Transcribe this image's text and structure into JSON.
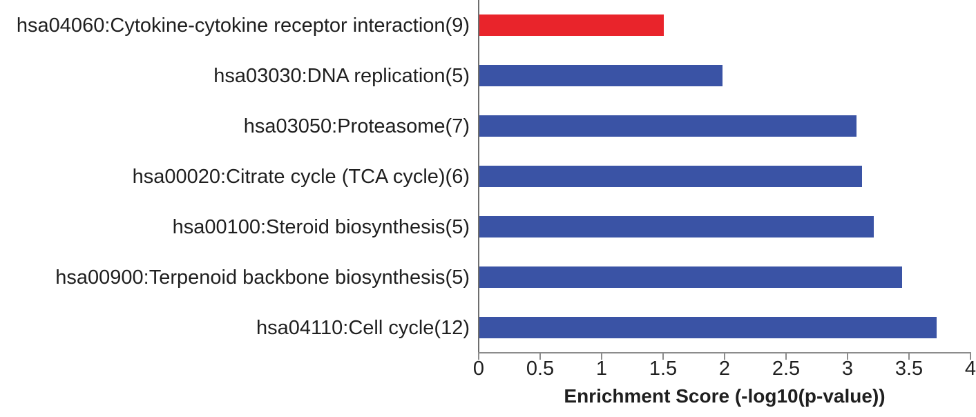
{
  "chart_data": {
    "type": "bar",
    "orientation": "horizontal",
    "title": "",
    "xlabel": "Enrichment Score (-log10(p-value))",
    "ylabel": "",
    "categories": [
      "hsa04060:Cytokine-cytokine receptor interaction(9)",
      "hsa03030:DNA replication(5)",
      "hsa03050:Proteasome(7)",
      "hsa00020:Citrate cycle (TCA cycle)(6)",
      "hsa00100:Steroid biosynthesis(5)",
      "hsa00900:Terpenoid backbone biosynthesis(5)",
      "hsa04110:Cell cycle(12)"
    ],
    "values": [
      1.5,
      1.98,
      3.07,
      3.11,
      3.21,
      3.44,
      3.72
    ],
    "bar_colors": [
      "#e9242b",
      "#3a53a5",
      "#3a53a5",
      "#3a53a5",
      "#3a53a5",
      "#3a53a5",
      "#3a53a5"
    ],
    "xlim": [
      0,
      4
    ],
    "x_ticks": [
      "0",
      "0.5",
      "1",
      "1.5",
      "2",
      "2.5",
      "3",
      "3.5",
      "4"
    ],
    "grid": false,
    "legend": false
  },
  "colors": {
    "highlight_bar": "#e9242b",
    "default_bar": "#3a53a5",
    "axis_line": "#8c8c8c",
    "text": "#1f1f1f",
    "background": "#ffffff"
  }
}
